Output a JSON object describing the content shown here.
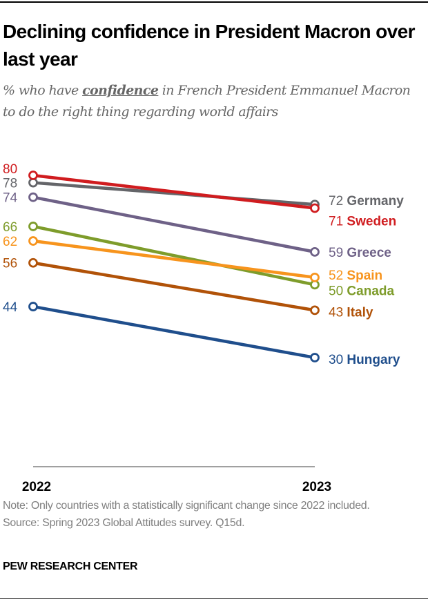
{
  "header": {
    "title": "Declining confidence in President Macron over last year",
    "subtitle_prefix": "% who have ",
    "subtitle_emphasis": "confidence",
    "subtitle_suffix": " in French President Emmanuel Macron to do the right thing regarding world affairs"
  },
  "footer": {
    "note": "Note: Only countries with a statistically significant change since 2022 included.",
    "source": "Source: Spring 2023 Global Attitudes survey. Q15d.",
    "brand": "PEW RESEARCH CENTER"
  },
  "chart_data": {
    "type": "line",
    "title": "Declining confidence in President Macron over last year",
    "subtitle": "% who have confidence in French President Emmanuel Macron to do the right thing regarding world affairs",
    "x": [
      "2022",
      "2023"
    ],
    "xlabel": "",
    "ylabel": "",
    "ylim": [
      0,
      80
    ],
    "grid": false,
    "legend": "direct labels at right",
    "series": [
      {
        "name": "Germany",
        "values": [
          78,
          72
        ],
        "color": "#646569"
      },
      {
        "name": "Sweden",
        "values": [
          80,
          71
        ],
        "color": "#d01c1f"
      },
      {
        "name": "Greece",
        "values": [
          74,
          59
        ],
        "color": "#6e6187"
      },
      {
        "name": "Spain",
        "values": [
          62,
          52
        ],
        "color": "#f7941d"
      },
      {
        "name": "Canada",
        "values": [
          66,
          50
        ],
        "color": "#7e9c2b"
      },
      {
        "name": "Italy",
        "values": [
          56,
          43
        ],
        "color": "#b15208"
      },
      {
        "name": "Hungary",
        "values": [
          44,
          30
        ],
        "color": "#1f4e8c"
      }
    ]
  }
}
